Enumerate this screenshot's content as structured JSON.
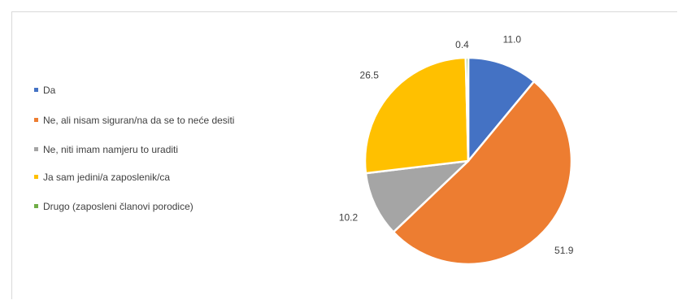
{
  "chart_data": {
    "type": "pie",
    "title": "",
    "legend_position": "left",
    "categories": [
      "Da",
      "Ne, ali nisam siguran/na da se to neće desiti",
      "Ne, niti imam namjeru to uraditi",
      "Ja sam jedini/a zaposlenik/ca",
      "Drugo (zaposleni članovi porodice)"
    ],
    "values": [
      11.0,
      51.9,
      10.2,
      26.5,
      0.4
    ],
    "labels": [
      "11.0",
      "51.9",
      "10.2",
      "26.5",
      "0.4"
    ],
    "colors": [
      "#4472c4",
      "#ed7d31",
      "#a5a5a5",
      "#ffc000",
      "#70ad47"
    ]
  }
}
